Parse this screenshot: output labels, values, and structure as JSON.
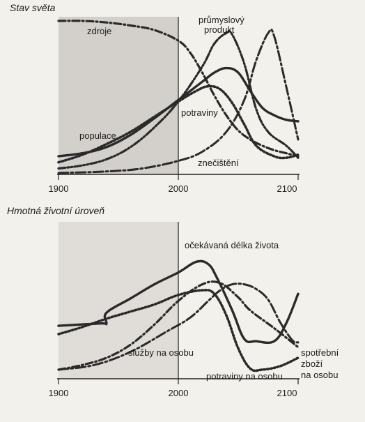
{
  "chart_data": [
    {
      "type": "line",
      "title": "Stav světa",
      "x_ticks": [
        "1900",
        "2000",
        "2100"
      ],
      "xlim": [
        1900,
        2100
      ],
      "series": [
        {
          "name": "zdroje",
          "style": "dashdot",
          "points": [
            [
              1900,
              1.0
            ],
            [
              1920,
              1.0
            ],
            [
              1940,
              0.99
            ],
            [
              1960,
              0.97
            ],
            [
              1980,
              0.94
            ],
            [
              2000,
              0.87
            ],
            [
              2010,
              0.79
            ],
            [
              2020,
              0.66
            ],
            [
              2030,
              0.51
            ],
            [
              2040,
              0.38
            ],
            [
              2050,
              0.28
            ],
            [
              2060,
              0.22
            ],
            [
              2070,
              0.18
            ],
            [
              2080,
              0.15
            ],
            [
              2090,
              0.13
            ],
            [
              2100,
              0.11
            ]
          ]
        },
        {
          "name": "populace",
          "style": "solid",
          "points": [
            [
              1900,
              0.11
            ],
            [
              1920,
              0.13
            ],
            [
              1940,
              0.17
            ],
            [
              1960,
              0.25
            ],
            [
              1980,
              0.36
            ],
            [
              2000,
              0.48
            ],
            [
              2020,
              0.6
            ],
            [
              2030,
              0.66
            ],
            [
              2040,
              0.69
            ],
            [
              2050,
              0.66
            ],
            [
              2060,
              0.54
            ],
            [
              2070,
              0.43
            ],
            [
              2080,
              0.38
            ],
            [
              2090,
              0.35
            ],
            [
              2100,
              0.34
            ]
          ]
        },
        {
          "name": "průmyslový produkt",
          "style": "dashdotdot",
          "points": [
            [
              1900,
              0.03
            ],
            [
              1920,
              0.05
            ],
            [
              1940,
              0.09
            ],
            [
              1960,
              0.17
            ],
            [
              1980,
              0.3
            ],
            [
              2000,
              0.47
            ],
            [
              2020,
              0.7
            ],
            [
              2030,
              0.85
            ],
            [
              2040,
              0.92
            ],
            [
              2045,
              0.91
            ],
            [
              2055,
              0.72
            ],
            [
              2065,
              0.42
            ],
            [
              2075,
              0.27
            ],
            [
              2090,
              0.18
            ],
            [
              2100,
              0.1
            ]
          ]
        },
        {
          "name": "potraviny",
          "style": "dotted",
          "points": [
            [
              1900,
              0.07
            ],
            [
              1920,
              0.12
            ],
            [
              1940,
              0.19
            ],
            [
              1960,
              0.27
            ],
            [
              1980,
              0.37
            ],
            [
              2000,
              0.47
            ],
            [
              2015,
              0.54
            ],
            [
              2025,
              0.57
            ],
            [
              2035,
              0.55
            ],
            [
              2045,
              0.46
            ],
            [
              2055,
              0.32
            ],
            [
              2065,
              0.18
            ],
            [
              2080,
              0.11
            ],
            [
              2090,
              0.1
            ],
            [
              2100,
              0.12
            ]
          ]
        },
        {
          "name": "znečištění",
          "style": "dashlong",
          "points": [
            [
              1900,
              0.0
            ],
            [
              1940,
              0.01
            ],
            [
              1970,
              0.03
            ],
            [
              2000,
              0.08
            ],
            [
              2020,
              0.14
            ],
            [
              2040,
              0.27
            ],
            [
              2055,
              0.48
            ],
            [
              2065,
              0.74
            ],
            [
              2075,
              0.92
            ],
            [
              2080,
              0.9
            ],
            [
              2090,
              0.57
            ],
            [
              2100,
              0.22
            ]
          ]
        }
      ]
    },
    {
      "type": "line",
      "title": "Hmotná životní úroveň",
      "x_ticks": [
        "1900",
        "2000",
        "2100"
      ],
      "xlim": [
        1900,
        2100
      ],
      "series": [
        {
          "name": "očekávaná délka života",
          "style": "solid",
          "points": [
            [
              1900,
              0.37
            ],
            [
              1935,
              0.39
            ],
            [
              1940,
              0.39
            ],
            [
              1940,
              0.48
            ],
            [
              1960,
              0.6
            ],
            [
              1980,
              0.72
            ],
            [
              2000,
              0.82
            ],
            [
              2015,
              0.91
            ],
            [
              2025,
              0.89
            ],
            [
              2032,
              0.78
            ],
            [
              2045,
              0.5
            ],
            [
              2055,
              0.26
            ],
            [
              2065,
              0.24
            ],
            [
              2080,
              0.24
            ],
            [
              2090,
              0.39
            ],
            [
              2100,
              0.64
            ]
          ]
        },
        {
          "name": "služby na osobu",
          "style": "dashdot",
          "points": [
            [
              1900,
              0.0
            ],
            [
              1920,
              0.04
            ],
            [
              1940,
              0.1
            ],
            [
              1960,
              0.21
            ],
            [
              1980,
              0.38
            ],
            [
              2000,
              0.58
            ],
            [
              2020,
              0.72
            ],
            [
              2035,
              0.73
            ],
            [
              2050,
              0.61
            ],
            [
              2060,
              0.5
            ],
            [
              2080,
              0.35
            ],
            [
              2100,
              0.19
            ]
          ]
        },
        {
          "name": "potraviny na osobu",
          "style": "dotted",
          "points": [
            [
              1900,
              0.3
            ],
            [
              1920,
              0.36
            ],
            [
              1940,
              0.43
            ],
            [
              1960,
              0.49
            ],
            [
              1980,
              0.55
            ],
            [
              2000,
              0.63
            ],
            [
              2020,
              0.67
            ],
            [
              2030,
              0.64
            ],
            [
              2040,
              0.46
            ],
            [
              2050,
              0.18
            ],
            [
              2060,
              0.01
            ],
            [
              2070,
              0.0
            ],
            [
              2085,
              0.03
            ],
            [
              2100,
              0.1
            ]
          ]
        },
        {
          "name": "spotřební zboží na osobu",
          "style": "dashlong",
          "points": [
            [
              1900,
              0.0
            ],
            [
              1930,
              0.04
            ],
            [
              1960,
              0.15
            ],
            [
              1990,
              0.32
            ],
            [
              2010,
              0.44
            ],
            [
              2025,
              0.58
            ],
            [
              2035,
              0.67
            ],
            [
              2045,
              0.72
            ],
            [
              2055,
              0.72
            ],
            [
              2065,
              0.68
            ],
            [
              2075,
              0.59
            ],
            [
              2085,
              0.4
            ],
            [
              2095,
              0.25
            ],
            [
              2100,
              0.23
            ]
          ]
        }
      ]
    }
  ],
  "labels": {
    "p1_zdroje": "zdroje",
    "p1_prumysl_1": "průmyslový",
    "p1_prumysl_2": "produkt",
    "p1_populace": "populace",
    "p1_potraviny": "potraviny",
    "p1_znecisteni": "znečištění",
    "p2_zivot": "očekávaná délka života",
    "p2_sluzby": "služby na osobu",
    "p2_potraviny": "potraviny na osobu",
    "p2_spotrebni_1": "spotřební",
    "p2_spotrebni_2": "zboží",
    "p2_spotrebni_3": "na osobu"
  }
}
